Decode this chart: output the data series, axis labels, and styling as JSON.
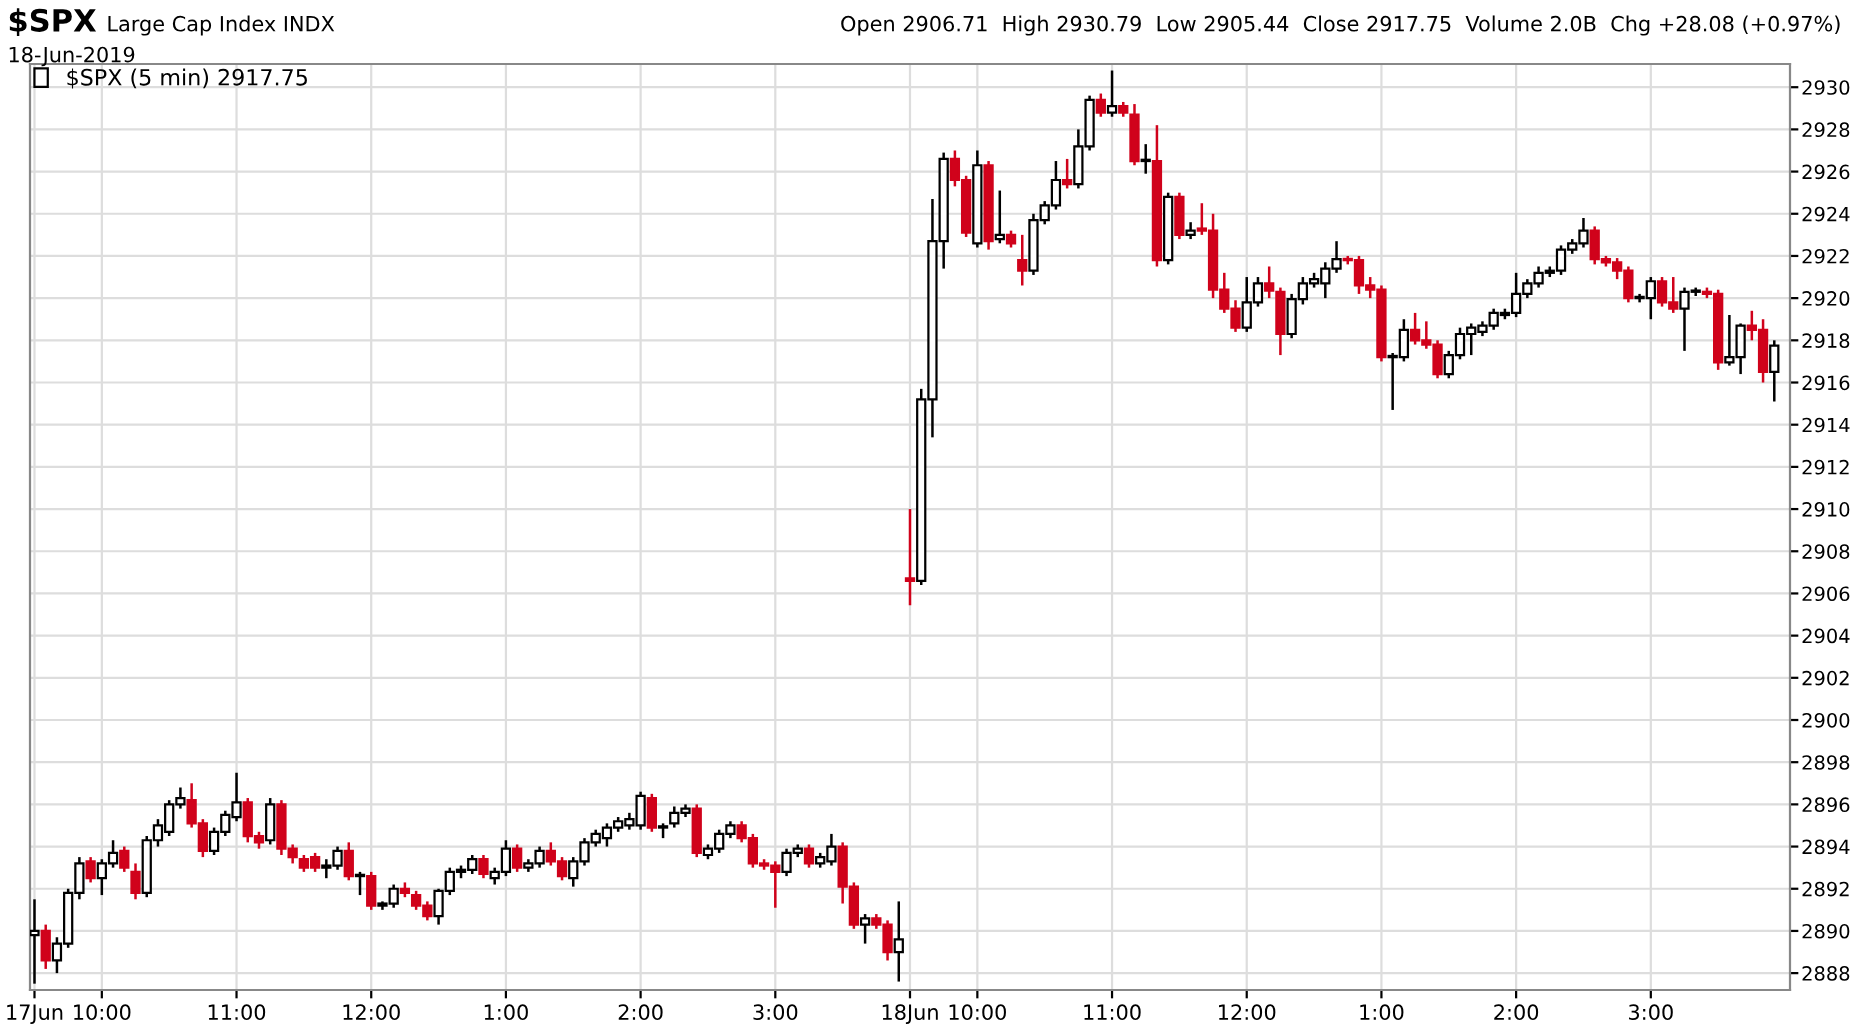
{
  "chart_data": {
    "type": "candlestick",
    "title": "$SPX",
    "subtitle": "Large Cap Index INDX",
    "annotations": [
      "18-Jun-2019",
      "Open 2906.71  High 2930.79  Low 2905.44  Close 2917.75  Volume 2.0B  Chg +28.08 (+0.97%)"
    ],
    "categories": [
      "17Jun",
      null,
      null,
      null,
      null,
      null,
      "10:00",
      null,
      null,
      null,
      null,
      null,
      null,
      null,
      null,
      null,
      null,
      null,
      "11:00",
      null,
      null,
      null,
      null,
      null,
      null,
      null,
      null,
      null,
      null,
      null,
      "12:00",
      null,
      null,
      null,
      null,
      null,
      null,
      null,
      null,
      null,
      null,
      null,
      "1:00",
      null,
      null,
      null,
      null,
      null,
      null,
      null,
      null,
      null,
      null,
      null,
      "2:00",
      null,
      null,
      null,
      null,
      null,
      null,
      null,
      null,
      null,
      null,
      null,
      "3:00",
      null,
      null,
      null,
      null,
      null,
      null,
      null,
      null,
      null,
      null,
      null,
      "18Jun",
      null,
      null,
      null,
      null,
      null,
      "10:00",
      null,
      null,
      null,
      null,
      null,
      null,
      null,
      null,
      null,
      null,
      null,
      "11:00",
      null,
      null,
      null,
      null,
      null,
      null,
      null,
      null,
      null,
      null,
      null,
      "12:00",
      null,
      null,
      null,
      null,
      null,
      null,
      null,
      null,
      null,
      null,
      null,
      "1:00",
      null,
      null,
      null,
      null,
      null,
      null,
      null,
      null,
      null,
      null,
      null,
      "2:00",
      null,
      null,
      null,
      null,
      null,
      null,
      null,
      null,
      null,
      null,
      null,
      "3:00",
      null,
      null,
      null,
      null,
      null,
      null,
      null,
      null,
      null,
      null,
      null
    ],
    "series": [
      {
        "name": "$SPX (5 min) 2917.75",
        "colors": [
          "#000000",
          "#d0021b",
          "#000000",
          "#000000",
          "#000000",
          "#d0021b",
          "#000000",
          "#000000",
          "#d0021b",
          "#d0021b",
          "#000000",
          "#000000",
          "#000000",
          "#000000",
          "#d0021b",
          "#d0021b",
          "#000000",
          "#000000",
          "#000000",
          "#d0021b",
          "#d0021b",
          "#000000",
          "#d0021b",
          "#d0021b",
          "#d0021b",
          "#d0021b",
          "#000000",
          "#000000",
          "#d0021b",
          "#000000",
          "#d0021b",
          "#000000",
          "#000000",
          "#d0021b",
          "#d0021b",
          "#d0021b",
          "#000000",
          "#000000",
          "#000000",
          "#000000",
          "#d0021b",
          "#000000",
          "#000000",
          "#d0021b",
          "#000000",
          "#000000",
          "#d0021b",
          "#d0021b",
          "#000000",
          "#000000",
          "#000000",
          "#000000",
          "#000000",
          "#000000",
          "#000000",
          "#d0021b",
          "#000000",
          "#000000",
          "#000000",
          "#d0021b",
          "#000000",
          "#000000",
          "#000000",
          "#d0021b",
          "#d0021b",
          "#d0021b",
          "#d0021b",
          "#000000",
          "#000000",
          "#d0021b",
          "#000000",
          "#000000",
          "#d0021b",
          "#d0021b",
          "#000000",
          "#d0021b",
          "#d0021b",
          "#000000",
          "#d0021b",
          "#000000",
          "#000000",
          "#000000",
          "#d0021b",
          "#d0021b",
          "#000000",
          "#d0021b",
          "#000000",
          "#d0021b",
          "#d0021b",
          "#000000",
          "#000000",
          "#000000",
          "#d0021b",
          "#000000",
          "#000000",
          "#d0021b",
          "#000000",
          "#d0021b",
          "#d0021b",
          "#000000",
          "#d0021b",
          "#000000",
          "#d0021b",
          "#000000",
          "#d0021b",
          "#d0021b",
          "#d0021b",
          "#d0021b",
          "#000000",
          "#000000",
          "#d0021b",
          "#d0021b",
          "#000000",
          "#000000",
          "#000000",
          "#000000",
          "#000000",
          "#d0021b",
          "#d0021b",
          "#d0021b",
          "#d0021b",
          "#000000",
          "#000000",
          "#d0021b",
          "#d0021b",
          "#d0021b",
          "#000000",
          "#000000",
          "#000000",
          "#000000",
          "#000000",
          "#000000",
          "#000000",
          "#000000",
          "#000000",
          "#000000",
          "#000000",
          "#000000",
          "#000000",
          "#d0021b",
          "#d0021b",
          "#d0021b",
          "#d0021b",
          "#000000",
          "#000000",
          "#d0021b",
          "#d0021b",
          "#000000",
          "#000000",
          "#d0021b",
          "#d0021b",
          "#000000",
          "#000000",
          "#d0021b",
          "#d0021b",
          "#000000"
        ],
        "ohlc": [
          [
            2889.8,
            2891.5,
            2887.5,
            2890.0
          ],
          [
            2890.0,
            2890.3,
            2888.2,
            2888.6
          ],
          [
            2888.6,
            2889.7,
            2888.0,
            2889.4
          ],
          [
            2889.4,
            2892.0,
            2889.2,
            2891.8
          ],
          [
            2891.8,
            2893.5,
            2891.5,
            2893.2
          ],
          [
            2893.3,
            2893.5,
            2892.3,
            2892.5
          ],
          [
            2892.5,
            2893.4,
            2891.7,
            2893.2
          ],
          [
            2893.2,
            2894.3,
            2893.0,
            2893.7
          ],
          [
            2893.8,
            2894.0,
            2892.8,
            2893.0
          ],
          [
            2892.8,
            2893.2,
            2891.5,
            2891.8
          ],
          [
            2891.8,
            2894.5,
            2891.6,
            2894.3
          ],
          [
            2894.3,
            2895.3,
            2894.0,
            2895.0
          ],
          [
            2894.7,
            2896.2,
            2894.5,
            2896.0
          ],
          [
            2896.0,
            2896.8,
            2895.8,
            2896.3
          ],
          [
            2896.2,
            2897.0,
            2894.9,
            2895.1
          ],
          [
            2895.1,
            2895.3,
            2893.5,
            2893.8
          ],
          [
            2893.8,
            2894.9,
            2893.6,
            2894.7
          ],
          [
            2894.7,
            2895.7,
            2894.5,
            2895.5
          ],
          [
            2895.4,
            2897.5,
            2895.2,
            2896.1
          ],
          [
            2896.1,
            2896.3,
            2894.2,
            2894.5
          ],
          [
            2894.5,
            2894.7,
            2893.9,
            2894.2
          ],
          [
            2894.3,
            2896.3,
            2894.1,
            2896.0
          ],
          [
            2896.0,
            2896.2,
            2893.6,
            2893.9
          ],
          [
            2893.9,
            2894.1,
            2893.2,
            2893.5
          ],
          [
            2893.4,
            2893.6,
            2892.8,
            2893.0
          ],
          [
            2893.5,
            2893.7,
            2892.8,
            2893.0
          ],
          [
            2893.0,
            2893.4,
            2892.5,
            2893.1
          ],
          [
            2893.1,
            2894.0,
            2892.9,
            2893.8
          ],
          [
            2893.8,
            2894.2,
            2892.4,
            2892.6
          ],
          [
            2892.6,
            2892.8,
            2891.7,
            2892.6
          ],
          [
            2892.6,
            2892.8,
            2891.0,
            2891.2
          ],
          [
            2891.2,
            2891.4,
            2891.0,
            2891.3
          ],
          [
            2891.3,
            2892.2,
            2891.1,
            2892.0
          ],
          [
            2892.0,
            2892.3,
            2891.6,
            2891.8
          ],
          [
            2891.7,
            2891.9,
            2891.0,
            2891.2
          ],
          [
            2891.2,
            2891.4,
            2890.5,
            2890.7
          ],
          [
            2890.7,
            2892.0,
            2890.3,
            2891.9
          ],
          [
            2891.9,
            2893.0,
            2891.7,
            2892.8
          ],
          [
            2892.8,
            2893.1,
            2892.5,
            2892.9
          ],
          [
            2892.9,
            2893.6,
            2892.7,
            2893.4
          ],
          [
            2893.4,
            2893.6,
            2892.5,
            2892.7
          ],
          [
            2892.5,
            2893.0,
            2892.2,
            2892.8
          ],
          [
            2892.8,
            2894.3,
            2892.6,
            2893.9
          ],
          [
            2893.9,
            2894.1,
            2892.8,
            2893.0
          ],
          [
            2893.0,
            2893.4,
            2892.8,
            2893.2
          ],
          [
            2893.2,
            2894.0,
            2893.0,
            2893.8
          ],
          [
            2893.8,
            2894.2,
            2893.1,
            2893.3
          ],
          [
            2893.3,
            2893.5,
            2892.4,
            2892.6
          ],
          [
            2892.5,
            2893.5,
            2892.1,
            2893.3
          ],
          [
            2893.3,
            2894.4,
            2893.1,
            2894.2
          ],
          [
            2894.2,
            2894.8,
            2894.0,
            2894.6
          ],
          [
            2894.4,
            2895.1,
            2894.0,
            2894.9
          ],
          [
            2894.9,
            2895.4,
            2894.7,
            2895.2
          ],
          [
            2895.0,
            2895.6,
            2894.8,
            2895.3
          ],
          [
            2895.0,
            2896.6,
            2894.8,
            2896.4
          ],
          [
            2896.3,
            2896.5,
            2894.7,
            2894.9
          ],
          [
            2894.9,
            2895.1,
            2894.4,
            2894.9
          ],
          [
            2895.1,
            2895.9,
            2894.9,
            2895.6
          ],
          [
            2895.6,
            2896.0,
            2895.4,
            2895.8
          ],
          [
            2895.8,
            2896.0,
            2893.5,
            2893.7
          ],
          [
            2893.6,
            2894.1,
            2893.4,
            2893.9
          ],
          [
            2893.9,
            2894.8,
            2893.7,
            2894.6
          ],
          [
            2894.6,
            2895.2,
            2894.4,
            2895.0
          ],
          [
            2895.0,
            2895.2,
            2894.2,
            2894.4
          ],
          [
            2894.4,
            2894.6,
            2893.0,
            2893.2
          ],
          [
            2893.2,
            2893.4,
            2892.9,
            2893.1
          ],
          [
            2893.1,
            2893.3,
            2891.1,
            2892.8
          ],
          [
            2892.8,
            2893.9,
            2892.6,
            2893.7
          ],
          [
            2893.7,
            2894.1,
            2893.5,
            2893.9
          ],
          [
            2893.9,
            2894.1,
            2893.0,
            2893.2
          ],
          [
            2893.2,
            2893.7,
            2893.0,
            2893.5
          ],
          [
            2893.3,
            2894.6,
            2893.1,
            2894.0
          ],
          [
            2894.0,
            2894.2,
            2891.3,
            2892.1
          ],
          [
            2892.1,
            2892.3,
            2890.1,
            2890.3
          ],
          [
            2890.3,
            2890.8,
            2889.4,
            2890.6
          ],
          [
            2890.6,
            2890.8,
            2890.1,
            2890.3
          ],
          [
            2890.3,
            2890.5,
            2888.6,
            2889.0
          ],
          [
            2889.0,
            2891.4,
            2887.6,
            2889.6
          ],
          [
            2906.71,
            2910.0,
            2905.44,
            2906.6
          ],
          [
            2906.6,
            2915.7,
            2906.4,
            2915.2
          ],
          [
            2915.2,
            2924.7,
            2913.4,
            2922.7
          ],
          [
            2922.7,
            2926.9,
            2921.4,
            2926.6
          ],
          [
            2926.6,
            2927.0,
            2925.3,
            2925.6
          ],
          [
            2925.6,
            2925.8,
            2922.9,
            2923.1
          ],
          [
            2922.6,
            2927.0,
            2922.4,
            2926.3
          ],
          [
            2926.3,
            2926.5,
            2922.3,
            2922.7
          ],
          [
            2922.8,
            2925.1,
            2922.6,
            2923.0
          ],
          [
            2923.0,
            2923.2,
            2922.4,
            2922.6
          ],
          [
            2921.8,
            2923.0,
            2920.6,
            2921.3
          ],
          [
            2921.3,
            2924.0,
            2921.1,
            2923.7
          ],
          [
            2923.7,
            2924.6,
            2923.5,
            2924.4
          ],
          [
            2924.4,
            2926.5,
            2924.2,
            2925.6
          ],
          [
            2925.6,
            2926.6,
            2925.2,
            2925.4
          ],
          [
            2925.4,
            2928.0,
            2925.2,
            2927.2
          ],
          [
            2927.2,
            2929.6,
            2927.0,
            2929.4
          ],
          [
            2929.4,
            2929.7,
            2928.6,
            2928.8
          ],
          [
            2928.8,
            2930.79,
            2928.6,
            2929.1
          ],
          [
            2929.1,
            2929.3,
            2928.6,
            2928.8
          ],
          [
            2928.7,
            2929.2,
            2926.3,
            2926.5
          ],
          [
            2926.5,
            2927.3,
            2925.9,
            2926.5
          ],
          [
            2926.5,
            2928.2,
            2921.5,
            2921.8
          ],
          [
            2921.8,
            2925.0,
            2921.6,
            2924.8
          ],
          [
            2924.8,
            2925.0,
            2922.8,
            2923.0
          ],
          [
            2923.0,
            2923.6,
            2922.8,
            2923.2
          ],
          [
            2923.3,
            2924.5,
            2923.0,
            2923.2
          ],
          [
            2923.2,
            2924.0,
            2920.0,
            2920.4
          ],
          [
            2920.4,
            2921.2,
            2919.3,
            2919.5
          ],
          [
            2919.5,
            2919.9,
            2918.4,
            2918.6
          ],
          [
            2918.6,
            2921.0,
            2918.4,
            2919.8
          ],
          [
            2919.8,
            2921.0,
            2919.6,
            2920.7
          ],
          [
            2920.7,
            2921.5,
            2920.0,
            2920.35
          ],
          [
            2920.3,
            2920.5,
            2917.3,
            2918.3
          ],
          [
            2918.3,
            2920.2,
            2918.1,
            2919.95
          ],
          [
            2919.95,
            2921.0,
            2919.7,
            2920.7
          ],
          [
            2920.7,
            2921.2,
            2920.5,
            2920.9
          ],
          [
            2920.7,
            2921.7,
            2920.0,
            2921.4
          ],
          [
            2921.4,
            2922.7,
            2921.2,
            2921.85
          ],
          [
            2921.85,
            2922.0,
            2921.6,
            2921.8
          ],
          [
            2921.8,
            2922.0,
            2920.2,
            2920.6
          ],
          [
            2920.6,
            2921.0,
            2920.0,
            2920.4
          ],
          [
            2920.4,
            2920.6,
            2917.0,
            2917.2
          ],
          [
            2917.2,
            2917.4,
            2914.7,
            2917.2
          ],
          [
            2917.2,
            2919.0,
            2917.0,
            2918.5
          ],
          [
            2918.5,
            2919.3,
            2917.8,
            2918.0
          ],
          [
            2918.0,
            2918.9,
            2917.6,
            2917.8
          ],
          [
            2917.8,
            2918.0,
            2916.2,
            2916.4
          ],
          [
            2916.4,
            2917.5,
            2916.2,
            2917.3
          ],
          [
            2917.3,
            2918.6,
            2917.1,
            2918.3
          ],
          [
            2918.3,
            2918.8,
            2917.3,
            2918.6
          ],
          [
            2918.4,
            2918.9,
            2918.2,
            2918.7
          ],
          [
            2918.7,
            2919.5,
            2918.5,
            2919.3
          ],
          [
            2919.2,
            2919.5,
            2919.0,
            2919.3
          ],
          [
            2919.3,
            2921.2,
            2919.1,
            2920.2
          ],
          [
            2920.2,
            2920.9,
            2920.0,
            2920.7
          ],
          [
            2920.7,
            2921.5,
            2920.5,
            2921.2
          ],
          [
            2921.2,
            2921.5,
            2921.0,
            2921.3
          ],
          [
            2921.3,
            2922.5,
            2921.1,
            2922.3
          ],
          [
            2922.3,
            2922.8,
            2922.1,
            2922.6
          ],
          [
            2922.6,
            2923.8,
            2922.4,
            2923.2
          ],
          [
            2923.2,
            2923.4,
            2921.6,
            2921.85
          ],
          [
            2921.85,
            2922.0,
            2921.5,
            2921.7
          ],
          [
            2921.7,
            2921.9,
            2920.9,
            2921.3
          ],
          [
            2921.3,
            2921.5,
            2919.8,
            2920.0
          ],
          [
            2920.0,
            2920.2,
            2919.8,
            2920.0
          ],
          [
            2920.0,
            2921.0,
            2919.0,
            2920.8
          ],
          [
            2920.8,
            2921.0,
            2919.6,
            2919.8
          ],
          [
            2919.8,
            2921.0,
            2919.3,
            2919.5
          ],
          [
            2919.5,
            2920.5,
            2917.5,
            2920.3
          ],
          [
            2920.3,
            2920.5,
            2920.1,
            2920.3
          ],
          [
            2920.3,
            2920.5,
            2920.0,
            2920.2
          ],
          [
            2920.2,
            2920.4,
            2916.6,
            2916.95
          ],
          [
            2916.95,
            2919.2,
            2916.8,
            2917.2
          ],
          [
            2917.2,
            2918.8,
            2916.4,
            2918.7
          ],
          [
            2918.7,
            2919.4,
            2918.0,
            2918.5
          ],
          [
            2918.5,
            2919.0,
            2916.0,
            2916.5
          ],
          [
            2916.5,
            2918.0,
            2915.1,
            2917.75
          ]
        ]
      }
    ],
    "ylim": [
      2887.2,
      2931.1
    ],
    "yticks": [
      2888,
      2890,
      2892,
      2894,
      2896,
      2898,
      2900,
      2902,
      2904,
      2906,
      2908,
      2910,
      2912,
      2914,
      2916,
      2918,
      2920,
      2922,
      2924,
      2926,
      2928,
      2930
    ],
    "grid": true,
    "legend": "top left"
  }
}
